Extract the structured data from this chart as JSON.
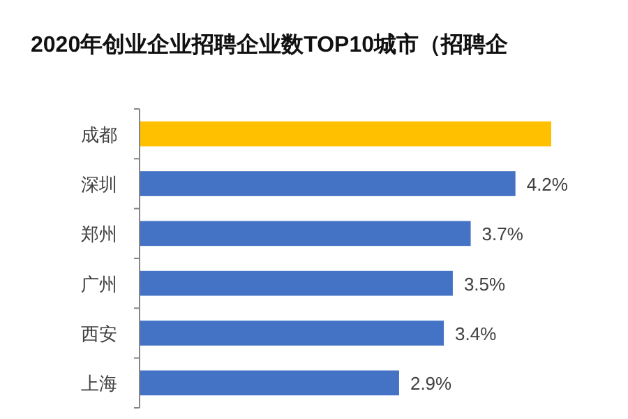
{
  "chart_data": {
    "type": "bar",
    "orientation": "horizontal",
    "title": "2020年创业企业招聘企业数TOP10城市（招聘企",
    "categories": [
      "成都",
      "深圳",
      "郑州",
      "广州",
      "西安",
      "上海"
    ],
    "values": [
      4.6,
      4.2,
      3.7,
      3.5,
      3.4,
      2.9
    ],
    "colors": [
      "#ffc000",
      "#4472c4",
      "#4472c4",
      "#4472c4",
      "#4472c4",
      "#4472c4"
    ],
    "value_labels": [
      null,
      "4.2%",
      "3.7%",
      "3.5%",
      "3.4%",
      "2.9%"
    ],
    "xlim": [
      0,
      4.6
    ],
    "tick_labels": "y"
  }
}
